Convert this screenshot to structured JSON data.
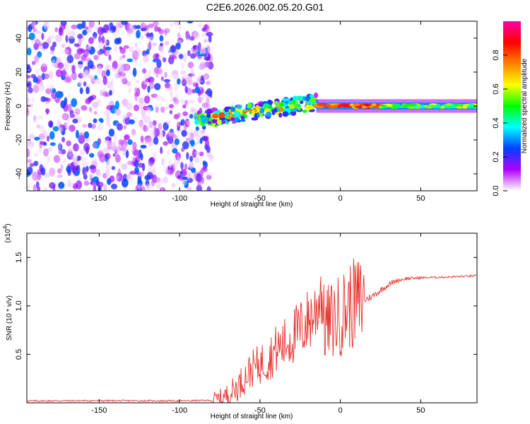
{
  "title": "C2E6.2026.002.05.20.G01",
  "chart_data": [
    {
      "type": "heatmap",
      "title": "C2E6.2026.002.05.20.G01",
      "xlabel": "Height of straight line (km)",
      "ylabel": "Frequency (Hz)",
      "xlim": [
        -195,
        85
      ],
      "ylim": [
        -50,
        50
      ],
      "xticks": [
        -150,
        -100,
        -50,
        0,
        50
      ],
      "yticks": [
        -40,
        -20,
        0,
        20,
        40
      ],
      "colorbar": {
        "label": "Normalized spectral amplitude",
        "range": [
          0,
          1
        ],
        "ticks": [
          "0.0",
          "0.2",
          "0.4",
          "0.6",
          "0.8"
        ],
        "colors": [
          "#ffffff",
          "#b000ff",
          "#0040ff",
          "#00ffff",
          "#00ff00",
          "#ffff00",
          "#ff8000",
          "#ff0000",
          "#ff00aa"
        ]
      },
      "regions": [
        {
          "x_range": [
            -195,
            -80
          ],
          "freq_range": [
            -50,
            50
          ],
          "description": "broadband noise",
          "amplitude_range": [
            0.02,
            0.3
          ]
        },
        {
          "x_range": [
            -90,
            -15
          ],
          "freq_center_start": -8,
          "freq_center_end": 2,
          "amplitude_range": [
            0.3,
            0.85
          ]
        },
        {
          "x_range": [
            -15,
            85
          ],
          "freq_center": 0,
          "amplitude_range": [
            0.4,
            0.95
          ]
        }
      ],
      "grid": false
    },
    {
      "type": "line",
      "xlabel": "Height of straight line (km)",
      "ylabel": "SNR (10 * v/v)",
      "y_multiplier_label": "(x10",
      "y_multiplier_exp": "4",
      "xlim": [
        -195,
        85
      ],
      "ylim": [
        0,
        17500
      ],
      "xticks": [
        -150,
        -100,
        -50,
        0,
        50
      ],
      "yticks": [
        {
          "value": 5000,
          "label": "0.5"
        },
        {
          "value": 10000,
          "label": "1.0"
        },
        {
          "value": 15000,
          "label": "1.5"
        }
      ],
      "series": [
        {
          "color": "#e8302a",
          "points": [
            [
              -195,
              200
            ],
            [
              -150,
              220
            ],
            [
              -100,
              200
            ],
            [
              -80,
              250
            ],
            [
              -75,
              400
            ],
            [
              -70,
              800
            ],
            [
              -65,
              1500
            ],
            [
              -60,
              2500
            ],
            [
              -55,
              3500
            ],
            [
              -50,
              4000
            ],
            [
              -45,
              4500
            ],
            [
              -40,
              5500
            ],
            [
              -35,
              6000
            ],
            [
              -30,
              6800
            ],
            [
              -25,
              7500
            ],
            [
              -20,
              8500
            ],
            [
              -15,
              9500
            ],
            [
              -12,
              12000
            ],
            [
              -10,
              8000
            ],
            [
              -5,
              8500
            ],
            [
              0,
              9000
            ],
            [
              5,
              10000
            ],
            [
              10,
              10300
            ],
            [
              15,
              10600
            ],
            [
              20,
              11000
            ],
            [
              25,
              11600
            ],
            [
              30,
              12200
            ],
            [
              35,
              12600
            ],
            [
              40,
              12800
            ],
            [
              50,
              12900
            ],
            [
              60,
              12950
            ],
            [
              70,
              13000
            ],
            [
              85,
              13100
            ]
          ]
        }
      ],
      "grid": false
    }
  ]
}
